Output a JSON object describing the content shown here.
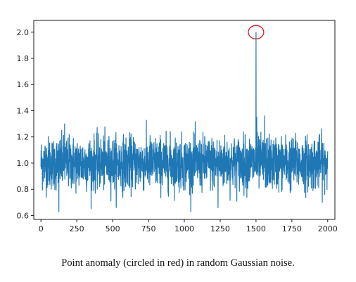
{
  "caption": "Point anomaly (circled in red) in random Gaussian noise.",
  "chart_data": {
    "type": "line",
    "title": "",
    "xlabel": "",
    "ylabel": "",
    "xlim": [
      -50,
      2050
    ],
    "ylim": [
      0.57,
      2.09
    ],
    "x_ticks": [
      0,
      250,
      500,
      750,
      1000,
      1250,
      1500,
      1750,
      2000
    ],
    "y_ticks": [
      0.6,
      0.8,
      1.0,
      1.2,
      1.4,
      1.6,
      1.8,
      2.0
    ],
    "x_tick_labels": [
      "0",
      "250",
      "500",
      "750",
      "1000",
      "1250",
      "1500",
      "1750",
      "2000"
    ],
    "y_tick_labels": [
      "0.6",
      "0.8",
      "1.0",
      "1.2",
      "1.4",
      "1.6",
      "1.8",
      "2.0"
    ],
    "grid": false,
    "series": [
      {
        "color": "#1f77b4",
        "n_points": 2001,
        "baseline": 1.0,
        "noise_std": 0.1,
        "noise_range": [
          0.63,
          1.36
        ],
        "notable_points": [
          {
            "x": 1500,
            "y": 2.0
          },
          {
            "x": 125,
            "y": 0.63
          },
          {
            "x": 1235,
            "y": 0.66
          },
          {
            "x": 1560,
            "y": 1.36
          },
          {
            "x": 165,
            "y": 1.3
          },
          {
            "x": 1505,
            "y": 1.35
          }
        ]
      }
    ],
    "anomaly": {
      "x": 1500,
      "y": 2.0,
      "marker_color": "#d62728"
    }
  }
}
